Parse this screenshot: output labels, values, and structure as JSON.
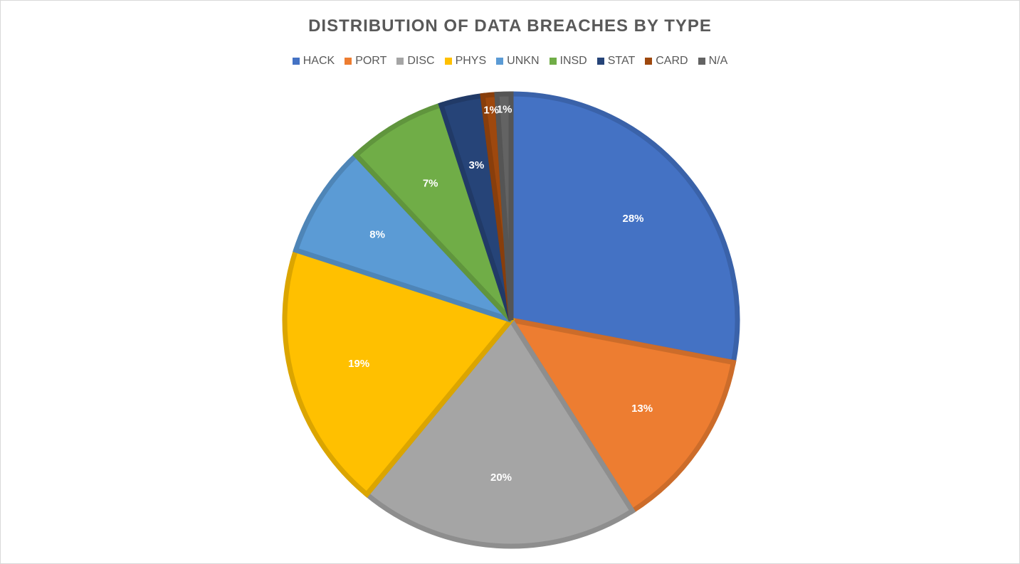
{
  "chart_data": {
    "type": "pie",
    "title": "DISTRIBUTION OF DATA BREACHES BY TYPE",
    "legend_position": "top",
    "slices": [
      {
        "label": "HACK",
        "value": 28,
        "display": "28%",
        "color": "#4472C4"
      },
      {
        "label": "PORT",
        "value": 13,
        "display": "13%",
        "color": "#ED7D31"
      },
      {
        "label": "DISC",
        "value": 20,
        "display": "20%",
        "color": "#A5A5A5"
      },
      {
        "label": "PHYS",
        "value": 19,
        "display": "19%",
        "color": "#FFC000"
      },
      {
        "label": "UNKN",
        "value": 8,
        "display": "8%",
        "color": "#5B9BD5"
      },
      {
        "label": "INSD",
        "value": 7,
        "display": "7%",
        "color": "#70AD47"
      },
      {
        "label": "STAT",
        "value": 3,
        "display": "3%",
        "color": "#264478"
      },
      {
        "label": "CARD",
        "value": 1,
        "display": "1%",
        "color": "#9E480E"
      },
      {
        "label": "N/A",
        "value": 1,
        "display": "1%",
        "color": "#636363"
      }
    ]
  }
}
